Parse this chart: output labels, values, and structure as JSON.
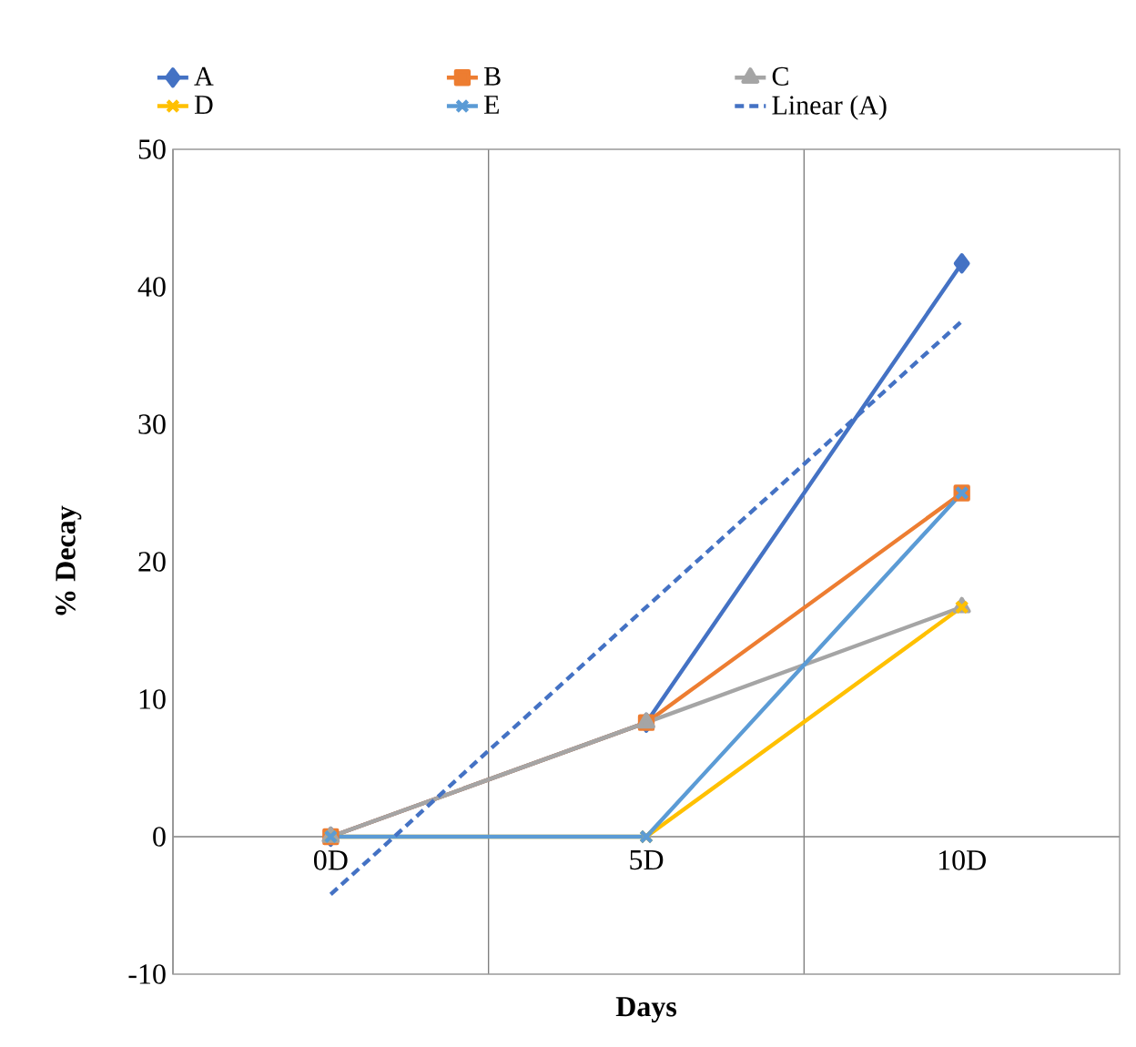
{
  "chart_data": {
    "type": "line",
    "xlabel": "Days",
    "ylabel": "% Decay",
    "categories": [
      "0D",
      "5D",
      "10D"
    ],
    "ylim": [
      -10,
      50
    ],
    "yticks": [
      -10,
      0,
      10,
      20,
      30,
      40,
      50
    ],
    "grid": "x",
    "legend": "top",
    "line_style": "solid",
    "series": [
      {
        "name": "A",
        "color": "#4472c4",
        "marker": "diamond",
        "values": [
          0,
          8.3,
          41.7
        ]
      },
      {
        "name": "B",
        "color": "#ed7d31",
        "marker": "square",
        "values": [
          0,
          8.3,
          25
        ]
      },
      {
        "name": "C",
        "color": "#a5a5a5",
        "marker": "triangle",
        "values": [
          0,
          8.3,
          16.7
        ]
      },
      {
        "name": "D",
        "color": "#ffc000",
        "marker": "cross",
        "values": [
          0,
          0,
          16.7
        ]
      },
      {
        "name": "E",
        "color": "#5b9bd5",
        "marker": "cross",
        "values": [
          0,
          0,
          25
        ]
      },
      {
        "name": "Linear (A)",
        "color": "#4472c4",
        "marker": "none",
        "line_style": "dashed",
        "values": [
          -4.2,
          16.7,
          37.5
        ]
      }
    ]
  }
}
